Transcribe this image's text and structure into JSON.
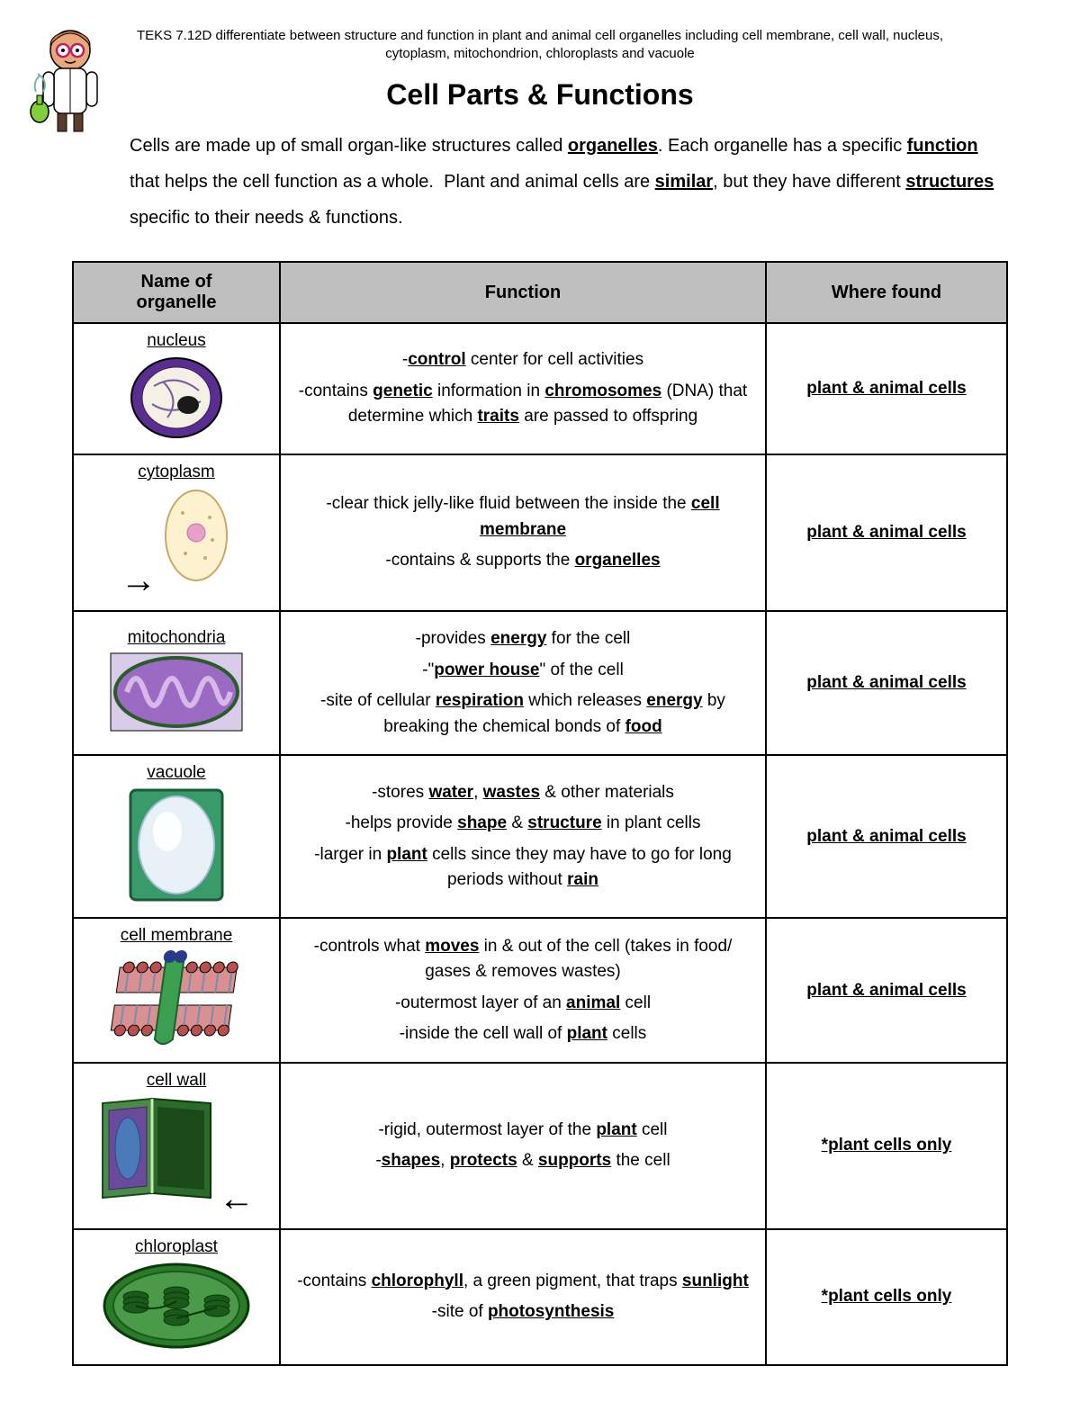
{
  "teks": "TEKS 7.12D differentiate between structure and function in plant and animal cell organelles including cell membrane, cell wall, nucleus, cytoplasm, mitochondrion, chloroplasts and vacuole",
  "title": "Cell Parts & Functions",
  "intro_html": "Cells are made up of small organ-like structures called <span class='u'>organelles</span>. Each organelle has a specific <span class='u'>function</span> that helps the cell function as a whole.&nbsp; Plant and animal cells are <span class='u'>similar</span>, but they have different <span class='u'>structures</span> specific to their needs & functions.",
  "columns": {
    "name": "Name of organelle",
    "function": "Function",
    "where": "Where found"
  },
  "rows": [
    {
      "name": "nucleus",
      "image": "nucleus",
      "function_html": "<p>-<span class='b'>control</span> center for cell activities</p><p>-contains <span class='b'>genetic</span> information in <span class='b'>chromosomes</span> (DNA) that determine which <span class='b'>traits</span> are passed to offspring</p>",
      "where": "plant & animal cells"
    },
    {
      "name": "cytoplasm",
      "image": "cytoplasm",
      "arrow": "left",
      "function_html": "<p>-clear thick jelly-like fluid between the inside the <span class='b'>cell membrane</span></p><p>-contains & supports the <span class='b'>organelles</span></p>",
      "where": "plant & animal cells"
    },
    {
      "name": "mitochondria",
      "image": "mitochondria",
      "function_html": "<p>-provides <span class='b'>energy</span> for the cell</p><p>-\"<span class='b'>power house</span>\" of the cell</p><p>-site of cellular <span class='b'>respiration</span> which releases <span class='b'>energy</span> by breaking the chemical bonds of <span class='b'>food</span></p>",
      "where": "plant & animal cells"
    },
    {
      "name": "vacuole",
      "image": "vacuole",
      "function_html": "<p>-stores <span class='b'>water</span>, <span class='b'>wastes</span> & other materials</p><p>-helps provide <span class='b'>shape</span> & <span class='b'>structure</span> in plant cells</p><p>-larger in <span class='b'>plant</span> cells since they may have to go for long periods without <span class='b'>rain</span></p>",
      "where": "plant & animal cells"
    },
    {
      "name": "cell membrane",
      "image": "cell_membrane",
      "function_html": "<p>-controls what <span class='b'>moves</span> in & out of the cell (takes in food/ gases & removes wastes)</p><p>-outermost layer of an <span class='b'>animal</span> cell</p><p>-inside the cell wall of <span class='b'>plant</span> cells</p>",
      "where": "plant & animal cells"
    },
    {
      "name": "cell wall",
      "image": "cell_wall",
      "arrow": "right",
      "function_html": "<p>-rigid, outermost layer of the <span class='b'>plant</span> cell</p><p>-<span class='b'>shapes</span>, <span class='b'>protects</span> & <span class='b'>supports</span> the cell</p>",
      "where": "*plant cells only"
    },
    {
      "name": "chloroplast",
      "image": "chloroplast",
      "function_html": "<p>-contains <span class='b'>chlorophyll</span>, a green pigment, that traps <span class='b'>sunlight</span></p><p>-site of <span class='b'>photosynthesis</span></p>",
      "where": "*plant cells only"
    }
  ],
  "svg": {
    "scientist": "<svg width='90' height='120' viewBox='0 0 90 120'><ellipse cx='48' cy='26' rx='22' ry='22' fill='#e8a87c' stroke='#000' stroke-width='1.5'/><path d='M26 20 Q48 -6 70 20 Q70 8 48 4 Q26 8 26 20 Z' fill='#c97b4a' stroke='#000'/><circle cx='40' cy='26' r='7' fill='#fff' stroke='#c02060' stroke-width='2.5'/><circle cx='56' cy='26' r='7' fill='#fff' stroke='#c02060' stroke-width='2.5'/><circle cx='40' cy='26' r='2' fill='#000'/><circle cx='56' cy='26' r='2' fill='#000'/><path d='M42 38 Q48 42 54 38' stroke='#000' fill='none' stroke-width='1.5'/><rect x='30' y='46' width='36' height='50' rx='8' fill='#fff' stroke='#000' stroke-width='1.5'/><path d='M48 46 L48 96' stroke='#000'/><rect x='18' y='50' width='12' height='38' rx='6' fill='#fff' stroke='#000' stroke-width='1.5'/><rect x='66' y='50' width='12' height='38' rx='6' fill='#fff' stroke='#000' stroke-width='1.5'/><ellipse cx='14' cy='94' rx='10' ry='12' fill='#7fd03a' stroke='#000' stroke-width='1.5'/><rect x='11' y='76' width='6' height='10' fill='#7fd03a' stroke='#000'/><path d='M10 72 Q6 62 14 54 M18 72 Q24 60 12 52' stroke='#7fb0b0' fill='none' stroke-width='2'/><rect x='34' y='96' width='10' height='20' fill='#5a3d2b' stroke='#000'/><rect x='52' y='96' width='10' height='20' fill='#5a3d2b' stroke='#000'/></svg>",
    "nucleus": "<svg width='110' height='95' viewBox='0 0 110 95'><ellipse cx='55' cy='48' rx='50' ry='44' fill='#5a2d91' stroke='#000' stroke-width='2'/><ellipse cx='55' cy='48' rx='38' ry='34' fill='#f5f0e6' stroke='#3a1d5e'/><path d='M30 35 Q55 20 80 40 M28 55 Q50 70 82 52 M40 30 Q60 50 45 70' stroke='#7a5ca0' fill='none' stroke-width='2'/><ellipse cx='68' cy='56' rx='12' ry='10' fill='#1a1a1a'/></svg>",
    "cytoplasm": "<svg width='80' height='110' viewBox='0 0 80 110'><ellipse cx='40' cy='55' rx='34' ry='50' fill='#fdf2d0' stroke='#c9a86a' stroke-width='2'/><circle cx='40' cy='52' r='10' fill='#e8a0c8' stroke='#c070a0'/><circle cx='25' cy='30' r='2' fill='#c9a86a'/><circle cx='55' cy='35' r='2' fill='#c9a86a'/><circle cx='50' cy='80' r='2' fill='#c9a86a'/><circle cx='28' cy='75' r='2' fill='#c9a86a'/><circle cx='58' cy='60' r='2' fill='#c9a86a'/></svg>",
    "mitochondria": "<svg width='150' height='90' viewBox='0 0 150 90'><rect x='2' y='2' width='146' height='86' fill='#d8cce8' stroke='#000'/><ellipse cx='75' cy='45' rx='68' ry='38' fill='#9b6bc4' stroke='#4a2d6b' stroke-width='3'/><path d='M20 45 Q30 15 40 45 Q50 75 60 45 Q70 15 80 45 Q90 75 100 45 Q110 15 120 45 Q128 70 135 45' stroke='#d8b8e8' fill='none' stroke-width='6'/><ellipse cx='75' cy='45' rx='68' ry='38' fill='none' stroke='#2a5c2a' stroke-width='4'/></svg>",
    "vacuole": "<svg width='110' height='130' viewBox='0 0 110 130'><rect x='4' y='4' width='102' height='122' rx='6' fill='#3a9b6a' stroke='#1a5a3a' stroke-width='3'/><ellipse cx='55' cy='65' rx='42' ry='54' fill='#e8f0f8' stroke='#a8c0d8' stroke-width='2'/><ellipse cx='45' cy='50' rx='16' ry='22' fill='#ffffff' opacity='0.9'/></svg>",
    "cell_membrane": "<svg width='160' height='110' viewBox='0 0 160 110'><g transform='skewX(-8)'><rect x='20' y='20' width='130' height='28' fill='#d89090' stroke='#000'/><rect x='20' y='62' width='130' height='28' fill='#d89090' stroke='#000'/><g stroke='#000' fill='#b85050'><circle cx='30' cy='20' r='6'/><circle cx='45' cy='20' r='6'/><circle cx='60' cy='20' r='6'/><circle cx='100' cy='20' r='6'/><circle cx='115' cy='20' r='6'/><circle cx='130' cy='20' r='6'/><circle cx='145' cy='20' r='6'/><circle cx='30' cy='90' r='6'/><circle cx='45' cy='90' r='6'/><circle cx='60' cy='90' r='6'/><circle cx='100' cy='90' r='6'/><circle cx='115' cy='90' r='6'/><circle cx='130' cy='90' r='6'/><circle cx='145' cy='90' r='6'/></g><g stroke='#7a8ab0' stroke-width='2'><line x1='30' y1='26' x2='30' y2='48'/><line x1='45' y1='26' x2='45' y2='48'/><line x1='60' y1='26' x2='60' y2='48'/><line x1='100' y1='26' x2='100' y2='48'/><line x1='115' y1='26' x2='115' y2='48'/><line x1='130' y1='26' x2='130' y2='48'/><line x1='145' y1='26' x2='145' y2='48'/><line x1='30' y1='62' x2='30' y2='84'/><line x1='45' y1='62' x2='45' y2='84'/><line x1='60' y1='62' x2='60' y2='84'/><line x1='100' y1='62' x2='100' y2='84'/><line x1='115' y1='62' x2='115' y2='84'/><line x1='130' y1='62' x2='130' y2='84'/><line x1='145' y1='62' x2='145' y2='84'/></g><path d='M70 10 Q80 0 90 10 L90 100 Q80 110 70 100 Z' fill='#3aa050' stroke='#1a6030' stroke-width='2'/><circle cx='74' cy='8' r='7' fill='#2a3a8a'/><circle cx='86' cy='8' r='7' fill='#2a3a8a'/></g></svg>",
    "cell_wall": "<svg width='130' height='120' viewBox='0 0 130 120'><polygon points='5,10 60,5 60,110 5,115' fill='#4a8a4a' stroke='#1a4a1a' stroke-width='2'/><polygon points='60,5 125,10 125,115 60,110' fill='#2a6a2a' stroke='#0a3a0a' stroke-width='2'/><polygon points='12,18 54,14 54,102 12,106' fill='#6a4a9a' stroke='#3a2a5a'/><ellipse cx='33' cy='60' rx='14' ry='34' fill='#4a7aba' stroke='#2a4a7a'/><polygon points='66,14 118,18 118,106 66,102' fill='#1a4a1a'/><line x1='60' y1='5' x2='60' y2='110' stroke='#c8e8a8' stroke-width='3'/></svg>",
    "chloroplast": "<svg width='170' height='100' viewBox='0 0 170 100'><ellipse cx='85' cy='50' rx='80' ry='46' fill='#2a7a2a' stroke='#0a3a0a' stroke-width='3'/><ellipse cx='85' cy='50' rx='70' ry='38' fill='#4a9a4a' stroke='#1a5a1a' stroke-width='2'/><g fill='#1a5a1a' stroke='#0a3a0a'><ellipse cx='40' cy='40' rx='14' ry='6'/><ellipse cx='40' cy='46' rx='14' ry='6'/><ellipse cx='40' cy='52' rx='14' ry='6'/><ellipse cx='85' cy='35' rx='14' ry='6'/><ellipse cx='85' cy='41' rx='14' ry='6'/><ellipse cx='85' cy='47' rx='14' ry='6'/><ellipse cx='85' cy='60' rx='14' ry='6'/><ellipse cx='85' cy='66' rx='14' ry='6'/><ellipse cx='130' cy='44' rx='14' ry='6'/><ellipse cx='130' cy='50' rx='14' ry='6'/><ellipse cx='130' cy='56' rx='14' ry='6'/></g><path d='M40 50 Q62 58 85 45 M85 64 Q108 58 130 52' stroke='#0a3a0a' fill='none' stroke-width='2'/></svg>"
  }
}
